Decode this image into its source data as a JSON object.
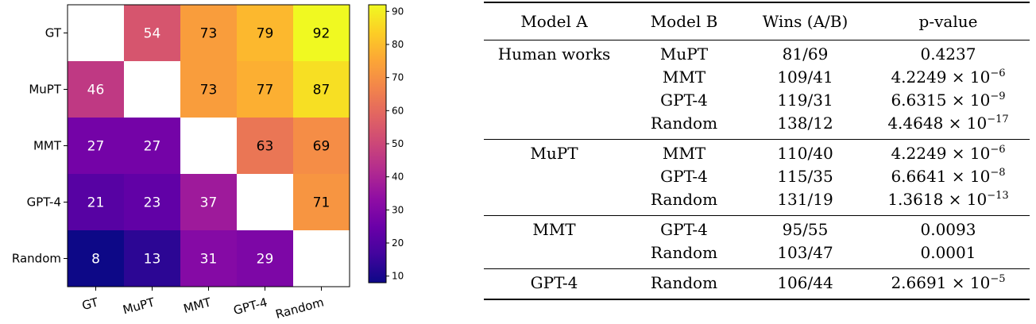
{
  "chart_data": {
    "type": "heatmap",
    "rows": [
      "GT",
      "MuPT",
      "MMT",
      "GPT-4",
      "Random"
    ],
    "columns": [
      "GT",
      "MuPT",
      "MMT",
      "GPT-4",
      "Random"
    ],
    "values": [
      [
        null,
        54,
        73,
        79,
        92
      ],
      [
        46,
        null,
        73,
        77,
        87
      ],
      [
        27,
        27,
        null,
        63,
        69
      ],
      [
        21,
        23,
        37,
        null,
        71
      ],
      [
        8,
        13,
        31,
        29,
        null
      ]
    ],
    "colormap": "plasma",
    "value_range": [
      8,
      92
    ],
    "colorbar_ticks": [
      10,
      20,
      30,
      40,
      50,
      60,
      70,
      80,
      90
    ]
  },
  "table": {
    "headers": [
      "Model A",
      "Model B",
      "Wins (A/B)",
      "p-value"
    ],
    "groups": [
      {
        "model_a": "Human works",
        "rows": [
          {
            "model_b": "MuPT",
            "wins": "81/69",
            "p_mant": "0.4237",
            "p_exp": ""
          },
          {
            "model_b": "MMT",
            "wins": "109/41",
            "p_mant": "4.2249 × 10",
            "p_exp": "−6"
          },
          {
            "model_b": "GPT-4",
            "wins": "119/31",
            "p_mant": "6.6315 × 10",
            "p_exp": "−9"
          },
          {
            "model_b": "Random",
            "wins": "138/12",
            "p_mant": "4.4648 × 10",
            "p_exp": "−17"
          }
        ]
      },
      {
        "model_a": "MuPT",
        "rows": [
          {
            "model_b": "MMT",
            "wins": "110/40",
            "p_mant": "4.2249 × 10",
            "p_exp": "−6"
          },
          {
            "model_b": "GPT-4",
            "wins": "115/35",
            "p_mant": "6.6641 × 10",
            "p_exp": "−8"
          },
          {
            "model_b": "Random",
            "wins": "131/19",
            "p_mant": "1.3618 × 10",
            "p_exp": "−13"
          }
        ]
      },
      {
        "model_a": "MMT",
        "rows": [
          {
            "model_b": "GPT-4",
            "wins": "95/55",
            "p_mant": "0.0093",
            "p_exp": ""
          },
          {
            "model_b": "Random",
            "wins": "103/47",
            "p_mant": "0.0001",
            "p_exp": ""
          }
        ]
      },
      {
        "model_a": "GPT-4",
        "rows": [
          {
            "model_b": "Random",
            "wins": "106/44",
            "p_mant": "2.6691 × 10",
            "p_exp": "−5"
          }
        ]
      }
    ]
  }
}
